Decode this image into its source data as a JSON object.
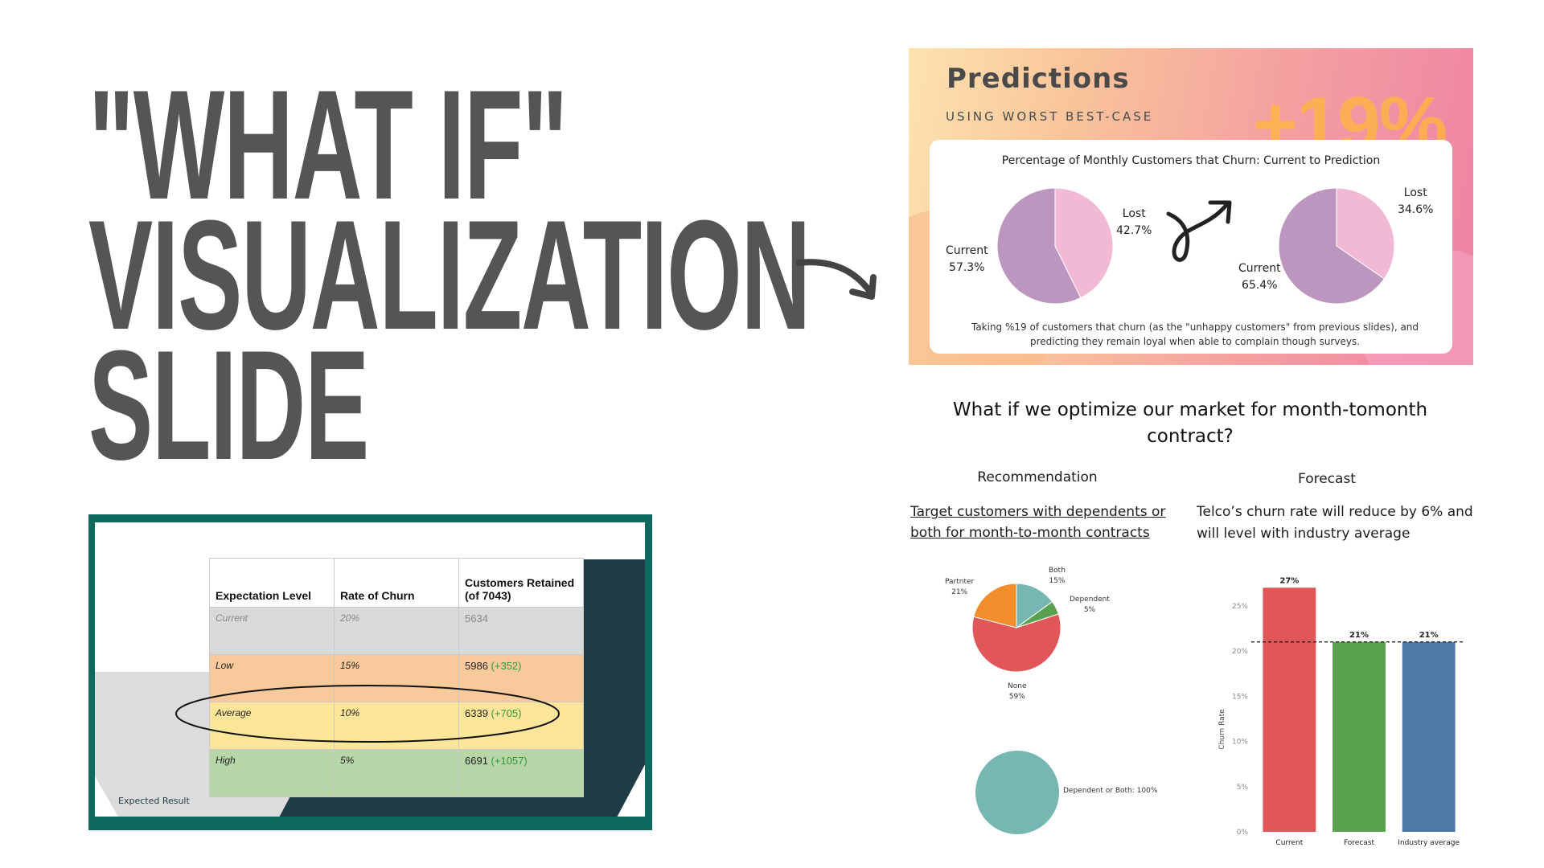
{
  "title_lines": [
    "\"WHAT IF\"",
    "VISUALIZATION",
    "SLIDE"
  ],
  "predictions": {
    "title": "Predictions",
    "subtitle": "USING WORST BEST-CASE",
    "percent": "+19%",
    "chart_title": "Percentage of Monthly Customers that Churn: Current to Prediction",
    "note": "Taking %19 of customers that churn (as the \"unhappy customers\" from previous slides), and predicting they remain loyal when able to complain though surveys."
  },
  "table_slide": {
    "headers": [
      "Expectation Level",
      "Rate of Churn",
      "Customers Retained (of 7043)"
    ],
    "rows": [
      {
        "level": "Current",
        "rate": "20%",
        "retained": "5634",
        "gain": ""
      },
      {
        "level": "Low",
        "rate": "15%",
        "retained": "5986",
        "gain": "(+352)"
      },
      {
        "level": "Average",
        "rate": "10%",
        "retained": "6339",
        "gain": "(+705)"
      },
      {
        "level": "High",
        "rate": "5%",
        "retained": "6691",
        "gain": "(+1057)"
      }
    ],
    "footer": "Expected Result"
  },
  "question": {
    "title": "What if we optimize our market for month-tomonth contract?"
  },
  "recommendation": {
    "heading": "Recommendation",
    "link": "Target customers with dependents or both for month-to-month contracts"
  },
  "forecast": {
    "heading": "Forecast",
    "text": "Telco’s churn rate will reduce by 6% and will level with industry average"
  },
  "chart_data": [
    {
      "type": "pie",
      "title": "",
      "labels": [
        "Current",
        "Lost"
      ],
      "values": [
        57.3,
        42.7
      ],
      "value_labels": [
        "57.3%",
        "42.7%"
      ],
      "colors": [
        "#bd96c0",
        "#f1b9d3"
      ]
    },
    {
      "type": "pie",
      "title": "",
      "labels": [
        "Current",
        "Lost"
      ],
      "values": [
        65.4,
        34.6
      ],
      "value_labels": [
        "65.4%",
        "34.6%"
      ],
      "colors": [
        "#bd96c0",
        "#f1b9d3"
      ]
    },
    {
      "type": "pie",
      "labels": [
        "Both",
        "Dependent",
        "None",
        "Partnter"
      ],
      "values": [
        15,
        5,
        59,
        21
      ],
      "value_labels": [
        "15%",
        "5%",
        "59%",
        "21%"
      ],
      "colors": [
        "#76b7b2",
        "#59a14f",
        "#e15759",
        "#f28e2b"
      ]
    },
    {
      "type": "pie",
      "labels": [
        "Dependent or Both"
      ],
      "values": [
        100
      ],
      "value_labels": [
        "100%"
      ],
      "colors": [
        "#76b7b2"
      ]
    },
    {
      "type": "bar",
      "categories": [
        "Current",
        "Forecast",
        "Industry average"
      ],
      "values": [
        27,
        21,
        21
      ],
      "value_labels": [
        "27%",
        "21%",
        "21%"
      ],
      "colors": [
        "#e15759",
        "#59a14f",
        "#4e79a7"
      ],
      "ylabel": "Churn Rate",
      "ylim": [
        0,
        28
      ],
      "yticks": [
        0,
        5,
        10,
        15,
        20,
        25
      ],
      "ytick_labels": [
        "0%",
        "5%",
        "10%",
        "15%",
        "20%",
        "25%"
      ],
      "reference_line": 21
    }
  ]
}
